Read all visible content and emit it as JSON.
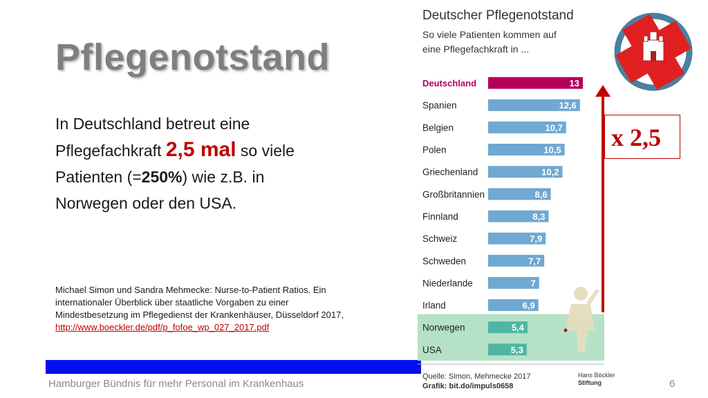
{
  "slide": {
    "title": "Pflegenotstand",
    "body": {
      "line1": "In Deutschland betreut eine",
      "line2_pre": "Pflegefachkraft ",
      "line2_em": "2,5 mal",
      "line2_post": " so viele",
      "line3_pre": "Patienten (=",
      "line3_bold": "250%",
      "line3_post": ") wie z.B. in",
      "line4": "Norwegen oder den USA."
    },
    "citation": {
      "text": "Michael Simon und Sandra Mehmecke: Nurse-to-Patient Ratios. Ein internationaler Überblick über staatliche Vorgaben zu einer Mindestbesetzung im Pflegedienst der Krankenhäuser, Düsseldorf 2017, ",
      "link": "http://www.boeckler.de/pdf/p_fofoe_wp_027_2017.pdf"
    },
    "footer": "Hamburger Bündnis für mehr Personal im Krankenhaus",
    "page_number": "6",
    "multiplier": "x 2,5"
  },
  "chart_data": {
    "type": "bar",
    "orientation": "horizontal",
    "title": "Deutscher Pflegenotstand",
    "subtitle_line1": "So viele Patienten kommen auf",
    "subtitle_line2": "eine Pflegefachkraft in ...",
    "categories": [
      "Deutschland",
      "Spanien",
      "Belgien",
      "Polen",
      "Griechenland",
      "Großbritannien",
      "Finnland",
      "Schweiz",
      "Schweden",
      "Niederlande",
      "Irland",
      "Norwegen",
      "USA"
    ],
    "values": [
      13,
      12.6,
      10.7,
      10.5,
      10.2,
      8.6,
      8.3,
      7.9,
      7.7,
      7,
      6.9,
      5.4,
      5.3
    ],
    "labels": [
      "13",
      "12,6",
      "10,7",
      "10,5",
      "10,2",
      "8,6",
      "8,3",
      "7,9",
      "7,7",
      "7",
      "6,9",
      "5,4",
      "5,3"
    ],
    "source_line1": "Quelle: Simon, Mehmecke 2017",
    "source_line2": "Grafik: bit.do/impuls0658",
    "brand_line1": "Hans Böckler",
    "brand_line2": "Stiftung",
    "colors": {
      "highlight": "#b5005b",
      "bar": "#6fa8d1",
      "comparison_bg": "#b5e2c6",
      "comparison_bar": "#4fb6a3",
      "arrow": "#c00000"
    }
  }
}
